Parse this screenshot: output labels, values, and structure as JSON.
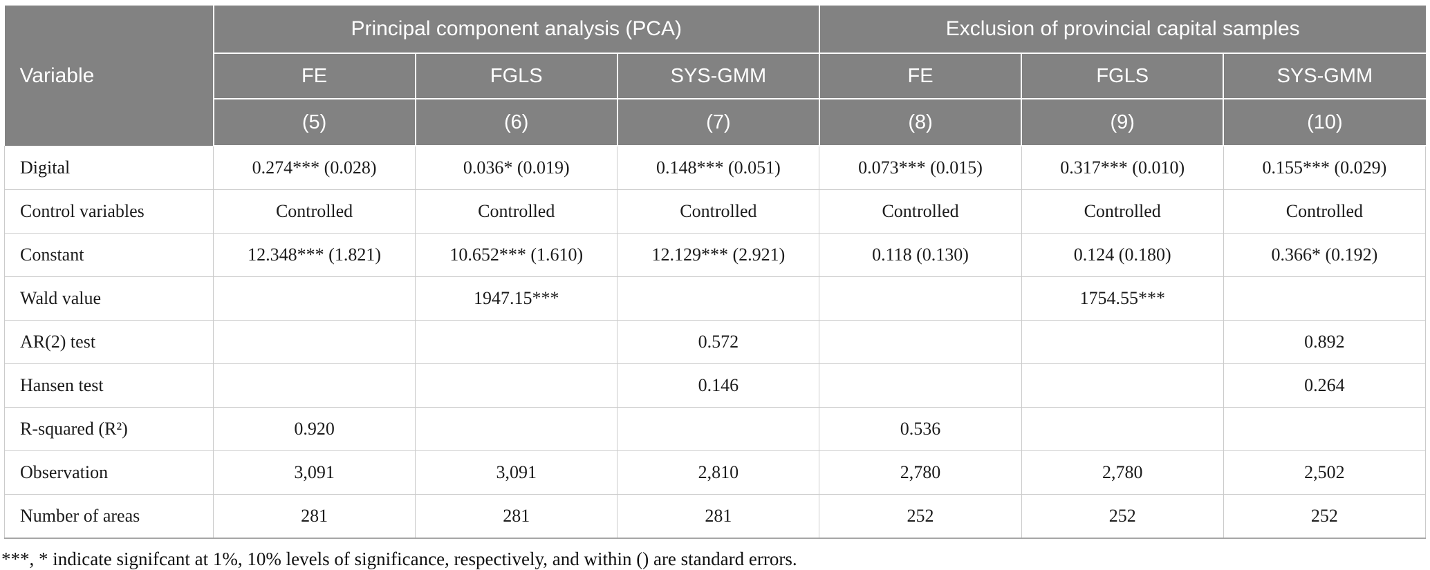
{
  "colors": {
    "header_background": "#828282",
    "header_text": "#ffffff",
    "grid_line": "#cbcbcb",
    "body_text": "#1b1b1b"
  },
  "table": {
    "corner_label": "Variable",
    "groups": [
      "Principal component analysis (PCA)",
      "Exclusion of provincial capital samples"
    ],
    "methods": [
      "FE",
      "FGLS",
      "SYS-GMM",
      "FE",
      "FGLS",
      "SYS-GMM"
    ],
    "model_numbers": [
      "(5)",
      "(6)",
      "(7)",
      "(8)",
      "(9)",
      "(10)"
    ],
    "rows": [
      {
        "label": "Digital",
        "values": [
          "0.274*** (0.028)",
          "0.036* (0.019)",
          "0.148*** (0.051)",
          "0.073*** (0.015)",
          "0.317*** (0.010)",
          "0.155*** (0.029)"
        ]
      },
      {
        "label": "Control variables",
        "values": [
          "Controlled",
          "Controlled",
          "Controlled",
          "Controlled",
          "Controlled",
          "Controlled"
        ]
      },
      {
        "label": "Constant",
        "values": [
          "12.348*** (1.821)",
          "10.652*** (1.610)",
          "12.129*** (2.921)",
          "0.118 (0.130)",
          "0.124 (0.180)",
          "0.366* (0.192)"
        ]
      },
      {
        "label": "Wald value",
        "values": [
          "",
          "1947.15***",
          "",
          "",
          "1754.55***",
          ""
        ]
      },
      {
        "label": "AR(2) test",
        "values": [
          "",
          "",
          "0.572",
          "",
          "",
          "0.892"
        ]
      },
      {
        "label": "Hansen test",
        "values": [
          "",
          "",
          "0.146",
          "",
          "",
          "0.264"
        ]
      },
      {
        "label": "R-squared (R²)",
        "values": [
          "0.920",
          "",
          "",
          "0.536",
          "",
          ""
        ]
      },
      {
        "label": "Observation",
        "values": [
          "3,091",
          "3,091",
          "2,810",
          "2,780",
          "2,780",
          "2,502"
        ]
      },
      {
        "label": "Number of areas",
        "values": [
          "281",
          "281",
          "281",
          "252",
          "252",
          "252"
        ]
      }
    ]
  },
  "footnote": "***, * indicate signifcant at 1%, 10% levels of significance, respectively, and within () are standard errors."
}
